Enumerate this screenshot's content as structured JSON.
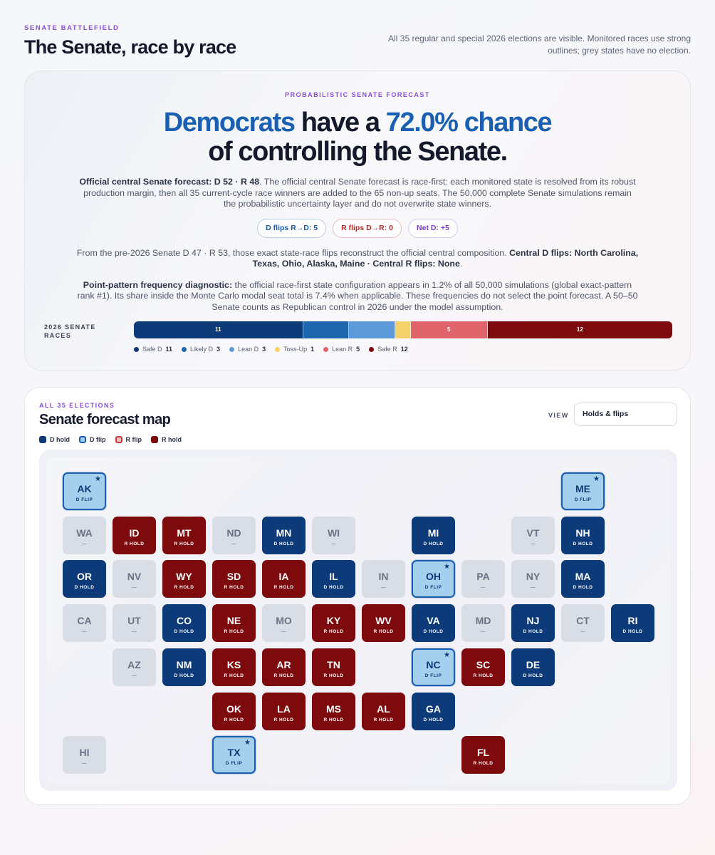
{
  "header": {
    "eyebrow": "SENATE BATTLEFIELD",
    "title": "The Senate, race by race",
    "note": "All 35 regular and special 2026 elections are visible. Monitored races use strong outlines; grey states have no election."
  },
  "hero": {
    "eyebrow": "PROBABILISTIC SENATE FORECAST",
    "headline_party": "Democrats",
    "headline_mid": " have a ",
    "headline_chance": "72.0% chance",
    "headline_end": "of controlling the Senate.",
    "p1_bold": "Official central Senate forecast: D 52 · R 48",
    "p1_text": ". The official central Senate forecast is race-first: each monitored state is resolved from its robust production margin, then all 35 current-cycle race winners are added to the 65 non-up seats. The 50,000 complete Senate simulations remain the probabilistic uncertainty layer and do not overwrite state winners.",
    "pill_d": "D flips R→D: 5",
    "pill_r": "R flips D→R: 0",
    "pill_net": "Net D: +5",
    "p2_text": "From the pre-2026 Senate D 47 · R 53, those exact state-race flips reconstruct the official central composition. ",
    "p2_bold": "Central D flips: North Carolina, Texas, Ohio, Alaska, Maine · Central R flips: None",
    "p2_end": ".",
    "p3_bold": "Point-pattern frequency diagnostic:",
    "p3_text": " the official race-first state configuration appears in 1.2% of all 50,000 simulations (global exact-pattern rank #1). Its share inside the Monte Carlo modal seat total is 7.4% when applicable. These frequencies do not select the point forecast. A 50–50 Senate counts as Republican control in 2026 under the model assumption."
  },
  "races_bar": {
    "label": "2026 SENATE RACES",
    "segments": [
      {
        "key": "Safe D",
        "count": 11,
        "label": "11",
        "color": "#0d3a78"
      },
      {
        "key": "Likely D",
        "count": 3,
        "label": "",
        "color": "#1d66ae"
      },
      {
        "key": "Lean D",
        "count": 3,
        "label": "",
        "color": "#5e9ad9"
      },
      {
        "key": "Toss-Up",
        "count": 1,
        "label": "",
        "color": "#f3d26b"
      },
      {
        "key": "Lean R",
        "count": 5,
        "label": "5",
        "color": "#e0646b"
      },
      {
        "key": "Safe R",
        "count": 12,
        "label": "12",
        "color": "#7d0a0c"
      }
    ]
  },
  "map": {
    "eyebrow": "ALL 35 ELECTIONS",
    "title": "Senate forecast map",
    "view_label": "VIEW",
    "view_value": "Holds & flips",
    "legend": [
      "D hold",
      "D flip",
      "R flip",
      "R hold"
    ],
    "status_labels": {
      "dhold": "D HOLD",
      "dflip": "D FLIP",
      "rhold": "R HOLD",
      "none": "—"
    },
    "tiles": [
      {
        "abbr": "AK",
        "type": "dflip",
        "row": 0,
        "col": 0,
        "monitored": true
      },
      {
        "abbr": "ME",
        "type": "dflip",
        "row": 0,
        "col": 10,
        "monitored": true
      },
      {
        "abbr": "WA",
        "type": "none",
        "row": 1,
        "col": 0
      },
      {
        "abbr": "ID",
        "type": "rhold",
        "row": 1,
        "col": 1
      },
      {
        "abbr": "MT",
        "type": "rhold",
        "row": 1,
        "col": 2
      },
      {
        "abbr": "ND",
        "type": "none",
        "row": 1,
        "col": 3
      },
      {
        "abbr": "MN",
        "type": "dhold",
        "row": 1,
        "col": 4
      },
      {
        "abbr": "WI",
        "type": "none",
        "row": 1,
        "col": 5
      },
      {
        "abbr": "MI",
        "type": "dhold",
        "row": 1,
        "col": 7
      },
      {
        "abbr": "VT",
        "type": "none",
        "row": 1,
        "col": 9
      },
      {
        "abbr": "NH",
        "type": "dhold",
        "row": 1,
        "col": 10
      },
      {
        "abbr": "OR",
        "type": "dhold",
        "row": 2,
        "col": 0
      },
      {
        "abbr": "NV",
        "type": "none",
        "row": 2,
        "col": 1
      },
      {
        "abbr": "WY",
        "type": "rhold",
        "row": 2,
        "col": 2
      },
      {
        "abbr": "SD",
        "type": "rhold",
        "row": 2,
        "col": 3
      },
      {
        "abbr": "IA",
        "type": "rhold",
        "row": 2,
        "col": 4
      },
      {
        "abbr": "IL",
        "type": "dhold",
        "row": 2,
        "col": 5
      },
      {
        "abbr": "IN",
        "type": "none",
        "row": 2,
        "col": 6
      },
      {
        "abbr": "OH",
        "type": "dflip",
        "row": 2,
        "col": 7,
        "monitored": true
      },
      {
        "abbr": "PA",
        "type": "none",
        "row": 2,
        "col": 8
      },
      {
        "abbr": "NY",
        "type": "none",
        "row": 2,
        "col": 9
      },
      {
        "abbr": "MA",
        "type": "dhold",
        "row": 2,
        "col": 10
      },
      {
        "abbr": "CA",
        "type": "none",
        "row": 3,
        "col": 0
      },
      {
        "abbr": "UT",
        "type": "none",
        "row": 3,
        "col": 1
      },
      {
        "abbr": "CO",
        "type": "dhold",
        "row": 3,
        "col": 2
      },
      {
        "abbr": "NE",
        "type": "rhold",
        "row": 3,
        "col": 3
      },
      {
        "abbr": "MO",
        "type": "none",
        "row": 3,
        "col": 4
      },
      {
        "abbr": "KY",
        "type": "rhold",
        "row": 3,
        "col": 5
      },
      {
        "abbr": "WV",
        "type": "rhold",
        "row": 3,
        "col": 6
      },
      {
        "abbr": "VA",
        "type": "dhold",
        "row": 3,
        "col": 7
      },
      {
        "abbr": "MD",
        "type": "none",
        "row": 3,
        "col": 8
      },
      {
        "abbr": "NJ",
        "type": "dhold",
        "row": 3,
        "col": 9
      },
      {
        "abbr": "CT",
        "type": "none",
        "row": 3,
        "col": 10
      },
      {
        "abbr": "RI",
        "type": "dhold",
        "row": 3,
        "col": 11
      },
      {
        "abbr": "AZ",
        "type": "none",
        "row": 4,
        "col": 1
      },
      {
        "abbr": "NM",
        "type": "dhold",
        "row": 4,
        "col": 2
      },
      {
        "abbr": "KS",
        "type": "rhold",
        "row": 4,
        "col": 3
      },
      {
        "abbr": "AR",
        "type": "rhold",
        "row": 4,
        "col": 4
      },
      {
        "abbr": "TN",
        "type": "rhold",
        "row": 4,
        "col": 5
      },
      {
        "abbr": "NC",
        "type": "dflip",
        "row": 4,
        "col": 7,
        "monitored": true
      },
      {
        "abbr": "SC",
        "type": "rhold",
        "row": 4,
        "col": 8
      },
      {
        "abbr": "DE",
        "type": "dhold",
        "row": 4,
        "col": 9
      },
      {
        "abbr": "OK",
        "type": "rhold",
        "row": 5,
        "col": 3
      },
      {
        "abbr": "LA",
        "type": "rhold",
        "row": 5,
        "col": 4
      },
      {
        "abbr": "MS",
        "type": "rhold",
        "row": 5,
        "col": 5
      },
      {
        "abbr": "AL",
        "type": "rhold",
        "row": 5,
        "col": 6
      },
      {
        "abbr": "GA",
        "type": "dhold",
        "row": 5,
        "col": 7
      },
      {
        "abbr": "HI",
        "type": "none",
        "row": 6,
        "col": 0
      },
      {
        "abbr": "TX",
        "type": "dflip",
        "row": 6,
        "col": 3,
        "monitored": true
      },
      {
        "abbr": "FL",
        "type": "rhold",
        "row": 6,
        "col": 8
      }
    ]
  }
}
